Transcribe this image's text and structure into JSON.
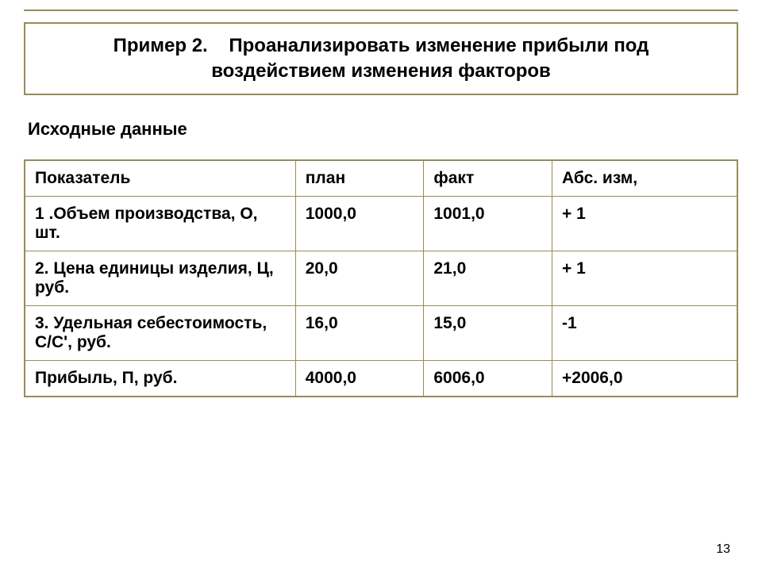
{
  "title": {
    "prefix": "Пример 2.",
    "line1_rest": "Проанализировать изменение прибыли под",
    "line2": "воздействием изменения факторов"
  },
  "subtitle": "Исходные данные",
  "table": {
    "columns": [
      "Показатель",
      "план",
      "факт",
      "Абс. изм,"
    ],
    "col_widths": [
      "38%",
      "18%",
      "18%",
      "26%"
    ],
    "rows": [
      [
        "1 .Объем производства, О, шт.",
        "1000,0",
        "1001,0",
        "+ 1"
      ],
      [
        "2.  Цена единицы изделия,  Ц,  руб.",
        "20,0",
        "21,0",
        "+ 1"
      ],
      [
        "3.  Удельная себестоимость, С/С', руб.",
        "16,0",
        "15,0",
        "-1"
      ],
      [
        "Прибыль, П, руб.",
        "4000,0",
        "6006,0",
        "+2006,0"
      ]
    ]
  },
  "styling": {
    "background_color": "#ffffff",
    "border_color": "#968c5a",
    "text_color": "#000000",
    "title_fontsize": 24,
    "subtitle_fontsize": 22,
    "table_fontsize": 21,
    "font_family": "Arial",
    "font_weight": "bold"
  },
  "page_number": "13"
}
